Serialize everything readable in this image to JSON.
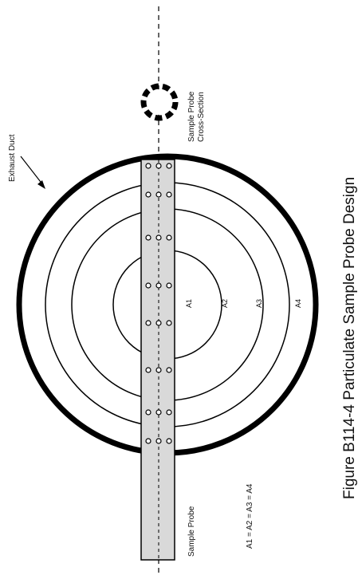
{
  "figure": {
    "caption": "Figure B114-4 Particulate Sample Probe Design"
  },
  "labels": {
    "exhaust_duct": "Exhaust Duct",
    "sample_probe": "Sample Probe",
    "probe_cross_section": "Sample Probe Cross-Section",
    "area_equation": "A1 = A2 = A3 = A4",
    "area_a1": "A1",
    "area_a2": "A2",
    "area_a3": "A3",
    "area_a4": "A4"
  },
  "colors": {
    "ink": "#000000",
    "probe_fill": "#d9d9d9",
    "background": "#ffffff"
  },
  "diagram": {
    "equal_area_rings": 4,
    "sampling_port_groups_per_side": 4,
    "ports_per_group": 3,
    "orientation": "rotated-90-ccw"
  }
}
